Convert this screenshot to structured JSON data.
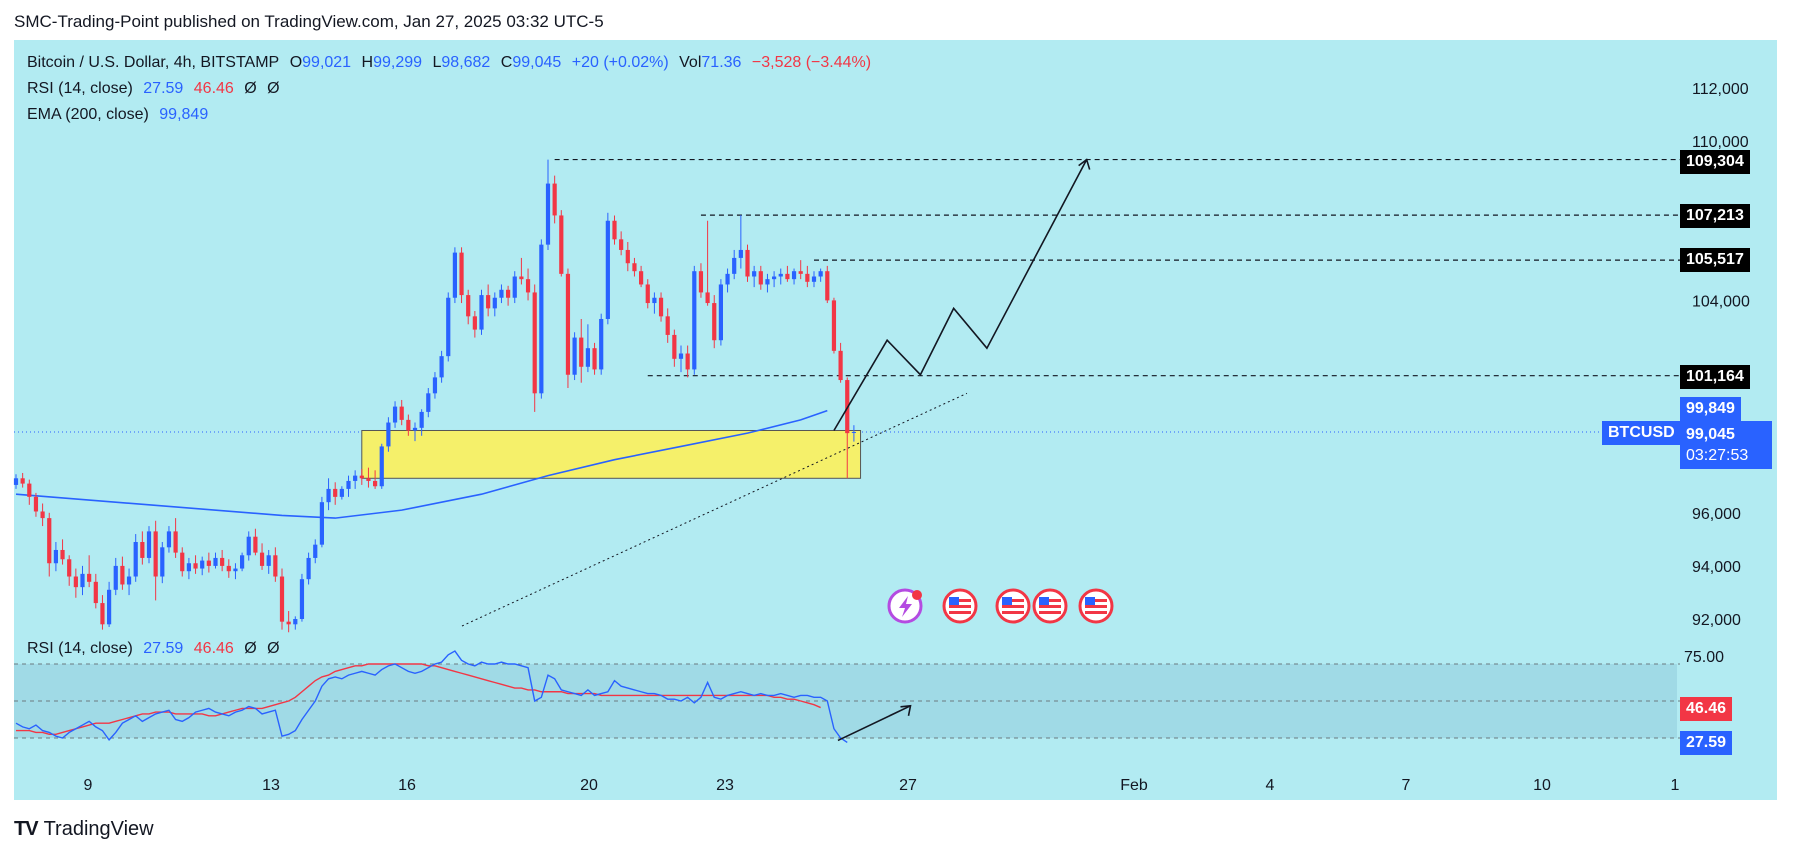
{
  "header": {
    "caption": "SMC-Trading-Point published on TradingView.com, Jan 27, 2025 03:32 UTC-5"
  },
  "legend": {
    "symbol": "Bitcoin / U.S. Dollar, 4h, BITSTAMP",
    "o_label": "O",
    "o_value": "99,021",
    "h_label": "H",
    "h_value": "99,299",
    "l_label": "L",
    "l_value": "98,682",
    "c_label": "C",
    "c_value": "99,045",
    "change": "+20 (+0.02%)",
    "vol_label": "Vol",
    "vol_value": "71.36",
    "vol_change": "−3,528 (−3.44%)",
    "rsi_label": "RSI (14, close)",
    "rsi_value": "27.59",
    "rsi_ma": "46.46",
    "rsi_extra1": "Ø",
    "rsi_extra2": "Ø",
    "ema_label": "EMA (200, close)",
    "ema_value": "99,849"
  },
  "rsi_pane": {
    "label": "RSI (14, close)",
    "value": "27.59",
    "ma": "46.46",
    "extra1": "Ø",
    "extra2": "Ø"
  },
  "price_tags": {
    "ema": "99,849",
    "symbol": "BTCUSD",
    "last": "99,045",
    "countdown": "03:27:53",
    "levels": [
      "109,304",
      "107,213",
      "105,517",
      "101,164"
    ],
    "rsi_ma": "46.46",
    "rsi": "27.59"
  },
  "footer": {
    "brand": "TradingView",
    "logo": "TV"
  },
  "colors": {
    "background": "#b2ebf2",
    "up": "#2962ff",
    "down": "#f23645",
    "ema": "#2962ff",
    "rsi": "#2962ff",
    "rsi_ma": "#f23645",
    "zone": "#f5f06a",
    "tag": "#000000",
    "last_tag": "#2962ff"
  },
  "chart_data": {
    "type": "candlestick",
    "symbol": "BTCUSD",
    "timeframe": "4h",
    "y_ticks": [
      92000,
      94000,
      96000,
      104000,
      110000,
      112000
    ],
    "y_tick_labels": [
      "92,000",
      "94,000",
      "96,000",
      "104,000",
      "110,000",
      "112,000"
    ],
    "ylim": [
      91000,
      113000
    ],
    "x_ticks": [
      "9",
      "13",
      "16",
      "20",
      "23",
      "27",
      "Feb",
      "4",
      "7",
      "10",
      "1"
    ],
    "ohlc": [
      [
        97050,
        97450,
        96900,
        97300
      ],
      [
        97300,
        97500,
        96950,
        97100
      ],
      [
        97100,
        97250,
        96300,
        96600
      ],
      [
        96600,
        96750,
        95850,
        96050
      ],
      [
        96050,
        96350,
        95500,
        95800
      ],
      [
        95800,
        96000,
        93600,
        94100
      ],
      [
        94100,
        94900,
        93800,
        94600
      ],
      [
        94600,
        95000,
        94050,
        94250
      ],
      [
        94250,
        94400,
        93250,
        93600
      ],
      [
        93600,
        93900,
        92800,
        93200
      ],
      [
        93200,
        94000,
        92900,
        93700
      ],
      [
        93700,
        94400,
        93200,
        93400
      ],
      [
        93400,
        93700,
        92400,
        92600
      ],
      [
        92600,
        92900,
        91600,
        91800
      ],
      [
        91800,
        93400,
        91700,
        93100
      ],
      [
        93100,
        94300,
        92900,
        94000
      ],
      [
        94000,
        94350,
        93100,
        93300
      ],
      [
        93300,
        93900,
        92900,
        93600
      ],
      [
        93600,
        95200,
        93400,
        94900
      ],
      [
        94900,
        95300,
        94050,
        94300
      ],
      [
        94300,
        95500,
        94100,
        95300
      ],
      [
        95300,
        95700,
        92700,
        93600
      ],
      [
        93600,
        94900,
        93350,
        94700
      ],
      [
        94700,
        95500,
        94500,
        95300
      ],
      [
        95300,
        95800,
        94300,
        94500
      ],
      [
        94500,
        94700,
        93600,
        93800
      ],
      [
        93800,
        94300,
        93500,
        94100
      ],
      [
        94100,
        94400,
        93700,
        93900
      ],
      [
        93900,
        94350,
        93650,
        94200
      ],
      [
        94200,
        94500,
        93750,
        94000
      ],
      [
        94000,
        94500,
        93900,
        94300
      ],
      [
        94300,
        94600,
        93800,
        94000
      ],
      [
        94000,
        94250,
        93550,
        93800
      ],
      [
        93800,
        94100,
        93500,
        93900
      ],
      [
        93900,
        94500,
        93800,
        94400
      ],
      [
        94400,
        95300,
        94200,
        95100
      ],
      [
        95100,
        95400,
        94400,
        94500
      ],
      [
        94500,
        94850,
        93850,
        94000
      ],
      [
        94000,
        94600,
        93700,
        94400
      ],
      [
        94400,
        94700,
        93400,
        93600
      ],
      [
        93600,
        93900,
        91600,
        91900
      ],
      [
        91900,
        92300,
        91500,
        91800
      ],
      [
        91800,
        92100,
        91600,
        92000
      ],
      [
        92000,
        93700,
        91900,
        93500
      ],
      [
        93500,
        94500,
        93300,
        94300
      ],
      [
        94300,
        95000,
        94100,
        94800
      ],
      [
        94800,
        96600,
        94700,
        96400
      ],
      [
        96400,
        97300,
        96100,
        96900
      ],
      [
        96900,
        97150,
        96300,
        96600
      ],
      [
        96600,
        97000,
        96500,
        96900
      ],
      [
        96900,
        97400,
        96600,
        97200
      ],
      [
        97200,
        97600,
        96900,
        97400
      ],
      [
        97400,
        97650,
        97050,
        97300
      ],
      [
        97300,
        97700,
        96950,
        97200
      ],
      [
        97200,
        97600,
        96900,
        97000
      ],
      [
        97000,
        98600,
        96900,
        98500
      ],
      [
        98500,
        99600,
        98300,
        99400
      ],
      [
        99400,
        100200,
        99200,
        100000
      ],
      [
        100000,
        100250,
        99300,
        99500
      ],
      [
        99500,
        99700,
        98900,
        99100
      ],
      [
        99100,
        99400,
        98700,
        99200
      ],
      [
        99200,
        99900,
        98900,
        99800
      ],
      [
        99800,
        100700,
        99600,
        100500
      ],
      [
        100500,
        101300,
        100300,
        101100
      ],
      [
        101100,
        102100,
        100900,
        101900
      ],
      [
        101900,
        104300,
        101700,
        104100
      ],
      [
        104100,
        106000,
        103900,
        105800
      ],
      [
        105800,
        106000,
        103900,
        104200
      ],
      [
        104200,
        104400,
        103100,
        103400
      ],
      [
        103400,
        103600,
        102600,
        102900
      ],
      [
        102900,
        104400,
        102700,
        104200
      ],
      [
        104200,
        104600,
        103400,
        103700
      ],
      [
        103700,
        104300,
        103400,
        104100
      ],
      [
        104100,
        104600,
        103900,
        104400
      ],
      [
        104400,
        104550,
        103800,
        104100
      ],
      [
        104100,
        105100,
        103900,
        104900
      ],
      [
        104900,
        105600,
        104600,
        104800
      ],
      [
        104800,
        105200,
        104000,
        104300
      ],
      [
        104300,
        104600,
        99800,
        100500
      ],
      [
        100500,
        106300,
        100300,
        106100
      ],
      [
        106100,
        109304,
        105900,
        108400
      ],
      [
        108400,
        108700,
        106900,
        107200
      ],
      [
        107200,
        107400,
        104900,
        105000
      ],
      [
        105000,
        105200,
        100700,
        101200
      ],
      [
        101200,
        102800,
        101000,
        102600
      ],
      [
        102600,
        103300,
        100900,
        101500
      ],
      [
        101500,
        103100,
        101300,
        102200
      ],
      [
        102200,
        102400,
        101200,
        101400
      ],
      [
        101400,
        103500,
        101200,
        103300
      ],
      [
        103300,
        107300,
        103100,
        107000
      ],
      [
        107000,
        107200,
        106100,
        106300
      ],
      [
        106300,
        106600,
        105700,
        105900
      ],
      [
        105900,
        106200,
        105100,
        105400
      ],
      [
        105400,
        105600,
        104900,
        105100
      ],
      [
        105100,
        105300,
        104500,
        104600
      ],
      [
        104600,
        104800,
        103700,
        103900
      ],
      [
        103900,
        104300,
        103500,
        104100
      ],
      [
        104100,
        104300,
        103200,
        103400
      ],
      [
        103400,
        103700,
        102400,
        102700
      ],
      [
        102700,
        102900,
        101500,
        101800
      ],
      [
        101800,
        102300,
        101300,
        102000
      ],
      [
        102000,
        102300,
        101100,
        101400
      ],
      [
        101400,
        105300,
        101200,
        105100
      ],
      [
        105100,
        105400,
        104100,
        104300
      ],
      [
        104300,
        107000,
        103800,
        103900
      ],
      [
        103900,
        104200,
        102200,
        102500
      ],
      [
        102500,
        104800,
        102300,
        104600
      ],
      [
        104600,
        105200,
        104300,
        105000
      ],
      [
        105000,
        105900,
        104800,
        105600
      ],
      [
        105600,
        107213,
        105200,
        105900
      ],
      [
        105900,
        106100,
        104700,
        104900
      ],
      [
        104900,
        105300,
        104500,
        105100
      ],
      [
        105100,
        105300,
        104400,
        104600
      ],
      [
        104600,
        105000,
        104300,
        104800
      ],
      [
        104800,
        105100,
        104500,
        104900
      ],
      [
        104900,
        105200,
        104600,
        105000
      ],
      [
        105000,
        105300,
        104700,
        104800
      ],
      [
        104800,
        105200,
        104600,
        105100
      ],
      [
        105100,
        105517,
        104800,
        105000
      ],
      [
        105000,
        105300,
        104500,
        104700
      ],
      [
        104700,
        105100,
        104500,
        104900
      ],
      [
        104900,
        105200,
        104700,
        105100
      ],
      [
        105100,
        105300,
        103900,
        104000
      ],
      [
        104000,
        104100,
        102000,
        102100
      ],
      [
        102100,
        102400,
        100900,
        101000
      ],
      [
        101000,
        101100,
        97300,
        99000
      ],
      [
        99021,
        99299,
        98682,
        99045
      ]
    ],
    "ema200": [
      {
        "i": 0,
        "v": 96700
      },
      {
        "i": 20,
        "v": 96300
      },
      {
        "i": 40,
        "v": 95900
      },
      {
        "i": 48,
        "v": 95800
      },
      {
        "i": 58,
        "v": 96100
      },
      {
        "i": 70,
        "v": 96700
      },
      {
        "i": 80,
        "v": 97400
      },
      {
        "i": 90,
        "v": 98000
      },
      {
        "i": 100,
        "v": 98500
      },
      {
        "i": 110,
        "v": 99000
      },
      {
        "i": 118,
        "v": 99500
      },
      {
        "i": 122,
        "v": 99849
      }
    ],
    "annotations": {
      "levels": [
        109304,
        107213,
        105517,
        101164
      ],
      "demand_zone": {
        "from": 97300,
        "to": 99100
      },
      "trendline": [
        {
          "i": 66,
          "v": 92000
        },
        {
          "i": 143,
          "v": 100500
        }
      ],
      "projection": [
        {
          "i": 123,
          "v": 99100
        },
        {
          "i": 131,
          "v": 102500
        },
        {
          "i": 136,
          "v": 101200
        },
        {
          "i": 141,
          "v": 103700
        },
        {
          "i": 146,
          "v": 102200
        },
        {
          "i": 161,
          "v": 109304
        }
      ],
      "rsi_projection": [
        {
          "i": 123,
          "v": 27.59
        },
        {
          "i": 130,
          "v": 42
        }
      ]
    },
    "rsi": {
      "levels": [
        30,
        50,
        70
      ],
      "top_label": "75.00",
      "values": [
        38,
        36,
        35,
        37,
        34,
        33,
        31,
        30,
        33,
        35,
        37,
        39,
        36,
        34,
        29,
        33,
        38,
        40,
        42,
        39,
        41,
        43,
        44,
        45,
        40,
        39,
        41,
        44,
        45,
        46,
        44,
        43,
        42,
        44,
        45,
        47,
        46,
        43,
        44,
        45,
        31,
        32,
        34,
        40,
        45,
        50,
        58,
        62,
        63,
        62,
        64,
        65,
        66,
        65,
        64,
        67,
        69,
        70,
        68,
        66,
        65,
        66,
        68,
        70,
        71,
        75,
        77,
        72,
        70,
        69,
        71,
        70,
        70,
        71,
        70,
        70,
        69,
        68,
        50,
        52,
        64,
        62,
        56,
        55,
        54,
        53,
        56,
        53,
        54,
        55,
        61,
        58,
        57,
        56,
        55,
        54,
        54,
        53,
        51,
        51,
        50,
        52,
        49,
        52,
        60,
        52,
        51,
        53,
        54,
        55,
        54,
        53,
        54,
        53,
        53,
        54,
        53,
        52,
        53,
        53,
        52,
        52,
        50,
        35,
        30,
        27.59
      ],
      "ma": [
        34,
        34,
        34,
        33,
        33,
        32,
        32,
        33,
        34,
        35,
        36,
        37,
        38,
        38,
        38,
        39,
        40,
        41,
        42,
        43,
        43,
        44,
        44,
        44,
        43,
        43,
        43,
        43,
        43,
        42,
        42,
        43,
        44,
        45,
        46,
        46,
        46,
        46,
        47,
        48,
        49,
        50,
        52,
        55,
        58,
        61,
        63,
        64,
        66,
        67,
        68,
        69,
        69,
        70,
        70,
        70,
        70,
        70,
        70,
        70,
        70,
        70,
        69,
        69,
        68,
        67,
        66,
        65,
        64,
        63,
        62,
        61,
        60,
        59,
        58,
        57,
        57,
        56,
        56,
        55,
        55,
        55,
        55,
        54,
        54,
        54,
        54,
        54,
        53,
        53,
        53,
        53,
        53,
        53,
        53,
        53,
        53,
        53,
        53,
        53,
        53,
        53,
        53,
        53,
        53,
        53,
        53,
        53,
        53,
        53,
        53,
        53,
        53,
        53,
        52,
        52,
        51,
        51,
        50,
        49,
        48,
        46.46
      ]
    }
  }
}
